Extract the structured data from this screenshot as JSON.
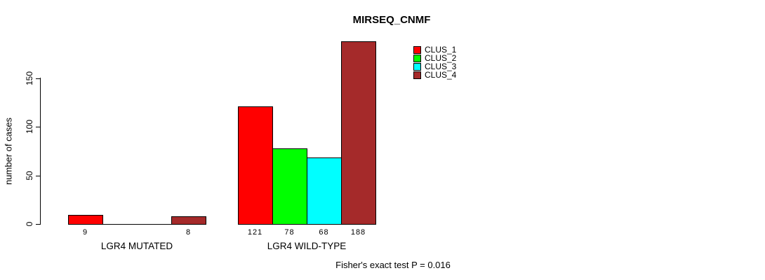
{
  "title": "MIRSEQ_CNMF",
  "y_axis": {
    "label": "number of cases"
  },
  "footer": "Fisher's exact test P = 0.016",
  "chart_data": {
    "type": "bar",
    "title": "MIRSEQ_CNMF",
    "xlabel": "",
    "ylabel": "number of cases",
    "ylim": [
      0,
      150
    ],
    "yticks": [
      0,
      50,
      100,
      150
    ],
    "grid": false,
    "legend_position": "top-right-inside",
    "categories": [
      "LGR4 MUTATED",
      "LGR4 WILD-TYPE"
    ],
    "series": [
      {
        "name": "CLUS_1",
        "color": "#FF0000",
        "values": [
          9,
          121
        ]
      },
      {
        "name": "CLUS_2",
        "color": "#00FF00",
        "values": [
          0,
          78
        ]
      },
      {
        "name": "CLUS_3",
        "color": "#00FFFF",
        "values": [
          0,
          68
        ]
      },
      {
        "name": "CLUS_4",
        "color": "#A52A2A",
        "values": [
          8,
          188
        ]
      }
    ],
    "bar_value_labels": [
      {
        "category": "LGR4 MUTATED",
        "labels": [
          "9",
          "",
          "",
          "8"
        ]
      },
      {
        "category": "LGR4 WILD-TYPE",
        "labels": [
          "121",
          "78",
          "68",
          "188"
        ]
      }
    ],
    "annotation": "Fisher's exact test P = 0.016"
  }
}
